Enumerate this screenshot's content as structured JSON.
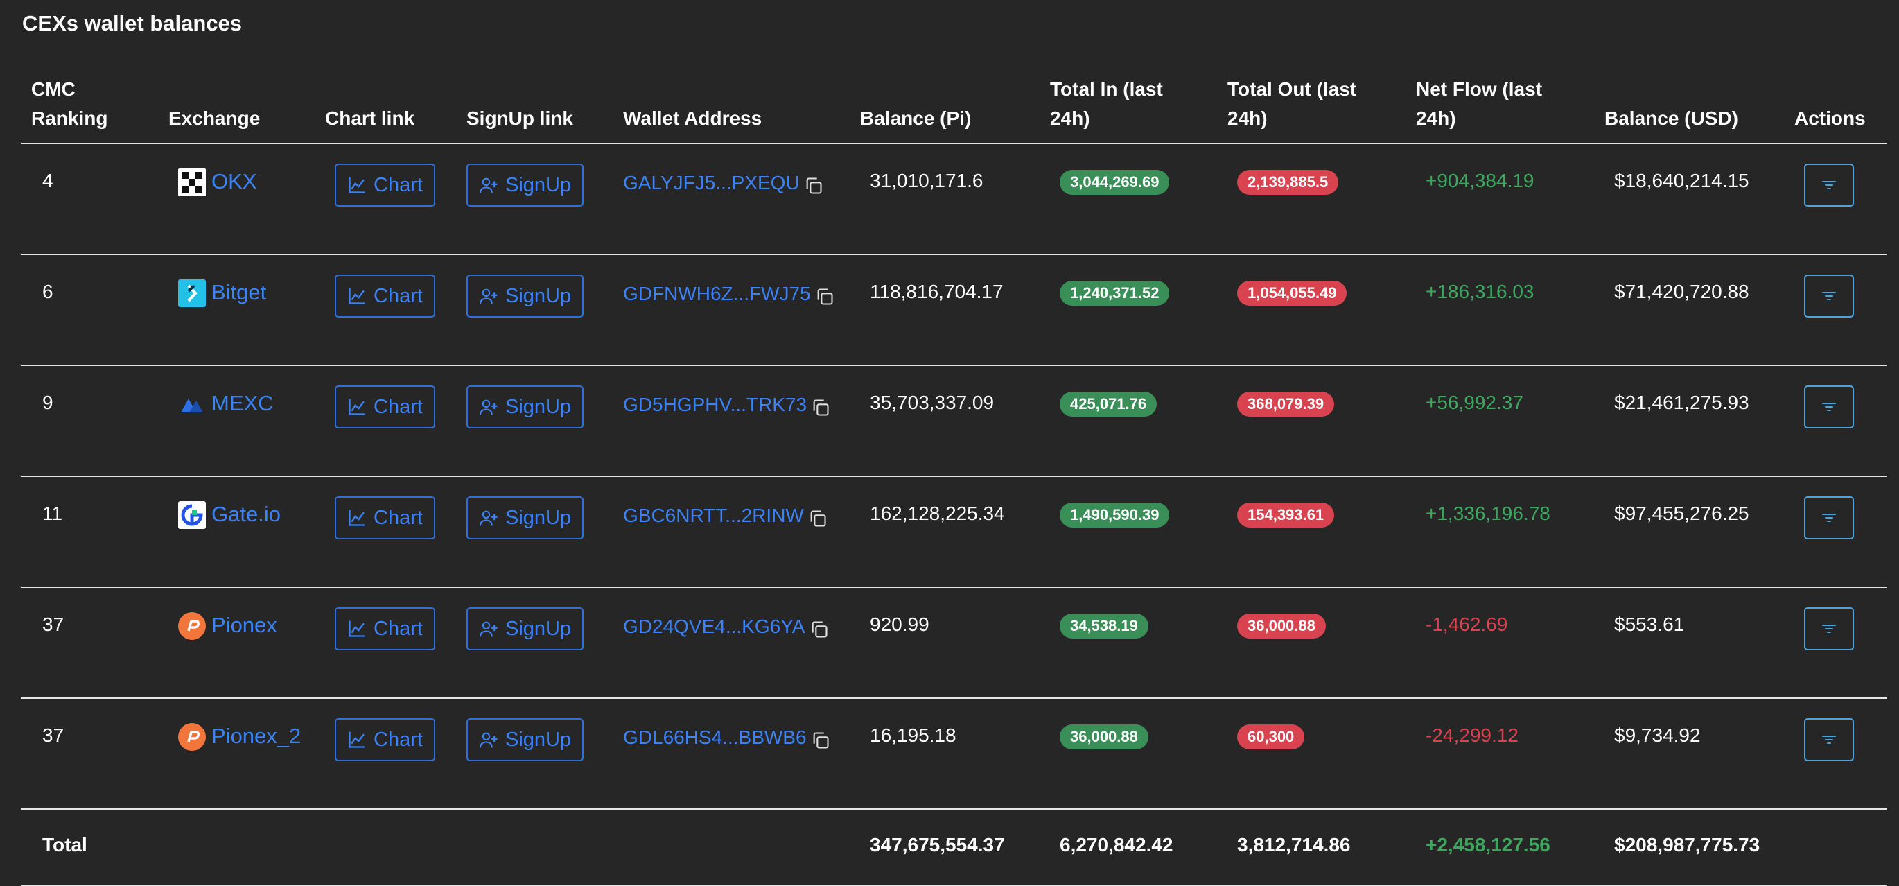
{
  "page": {
    "title": "CEXs wallet balances"
  },
  "headers": {
    "rank": "CMC Ranking",
    "exchange": "Exchange",
    "chart": "Chart link",
    "signup": "SignUp link",
    "wallet": "Wallet Address",
    "balance_pi": "Balance (Pi)",
    "total_in": "Total In (last 24h)",
    "total_out": "Total Out (last 24h)",
    "net_flow": "Net Flow (last 24h)",
    "balance_usd": "Balance (USD)",
    "actions": "Actions"
  },
  "buttons": {
    "chart": "Chart",
    "signup": "SignUp"
  },
  "rows": [
    {
      "rank": "4",
      "exchange": "OKX",
      "logo": "okx-logo",
      "address": "GALYJFJ5...PXEQU",
      "balance_pi": "31,010,171.6",
      "total_in": "3,044,269.69",
      "total_out": "2,139,885.5",
      "net_flow": "+904,384.19",
      "net_sign": "pos",
      "balance_usd": "$18,640,214.15"
    },
    {
      "rank": "6",
      "exchange": "Bitget",
      "logo": "bitget-logo",
      "address": "GDFNWH6Z...FWJ75",
      "balance_pi": "118,816,704.17",
      "total_in": "1,240,371.52",
      "total_out": "1,054,055.49",
      "net_flow": "+186,316.03",
      "net_sign": "pos",
      "balance_usd": "$71,420,720.88"
    },
    {
      "rank": "9",
      "exchange": "MEXC",
      "logo": "mexc-logo",
      "address": "GD5HGPHV...TRK73",
      "balance_pi": "35,703,337.09",
      "total_in": "425,071.76",
      "total_out": "368,079.39",
      "net_flow": "+56,992.37",
      "net_sign": "pos",
      "balance_usd": "$21,461,275.93"
    },
    {
      "rank": "11",
      "exchange": "Gate.io",
      "logo": "gate-logo",
      "address": "GBC6NRTT...2RINW",
      "balance_pi": "162,128,225.34",
      "total_in": "1,490,590.39",
      "total_out": "154,393.61",
      "net_flow": "+1,336,196.78",
      "net_sign": "pos",
      "balance_usd": "$97,455,276.25"
    },
    {
      "rank": "37",
      "exchange": "Pionex",
      "logo": "pionex-logo",
      "address": "GD24QVE4...KG6YA",
      "balance_pi": "920.99",
      "total_in": "34,538.19",
      "total_out": "36,000.88",
      "net_flow": "-1,462.69",
      "net_sign": "neg",
      "balance_usd": "$553.61"
    },
    {
      "rank": "37",
      "exchange": "Pionex_2",
      "logo": "pionex-logo",
      "address": "GDL66HS4...BBWB6",
      "balance_pi": "16,195.18",
      "total_in": "36,000.88",
      "total_out": "60,300",
      "net_flow": "-24,299.12",
      "net_sign": "neg",
      "balance_usd": "$9,734.92"
    }
  ],
  "total": {
    "label": "Total",
    "balance_pi": "347,675,554.37",
    "total_in": "6,270,842.42",
    "total_out": "3,812,714.86",
    "net_flow": "+2,458,127.56",
    "balance_usd": "$208,987,775.73"
  },
  "colors": {
    "background": "#262626",
    "link": "#3b82f6",
    "positive": "#3ea75f",
    "negative": "#d9424f",
    "pill_in": "#3a8f58",
    "pill_out": "#d9424f"
  }
}
